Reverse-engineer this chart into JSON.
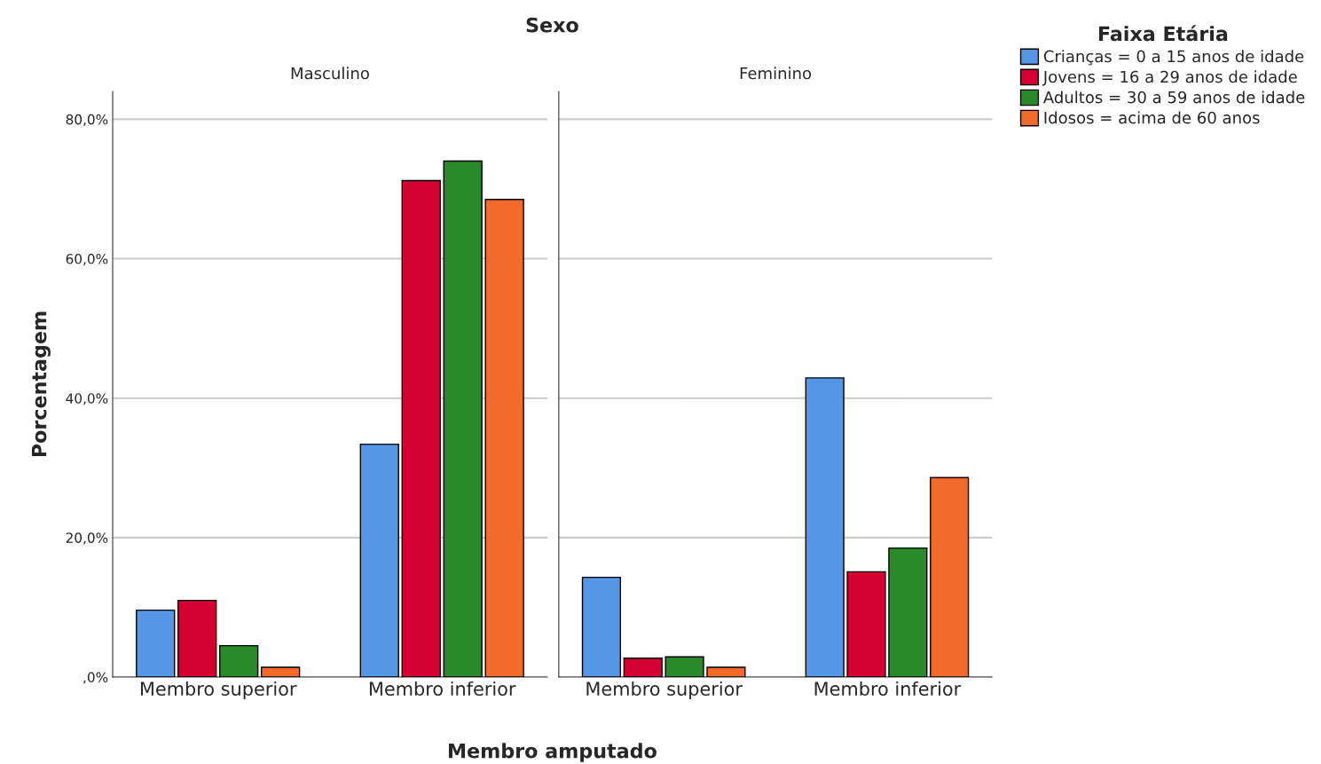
{
  "chart_data": [
    {
      "type": "bar",
      "title": "Sexo",
      "subtitle": "Masculino",
      "xlabel": "Membro amputado",
      "ylabel": "Porcentagem",
      "legend_title": "Faixa Etária",
      "legend": "top right",
      "categories": [
        "Membro superior",
        "Membro inferior"
      ],
      "series": [
        {
          "name": "Crianças = 0 a 15 anos de idade",
          "color": "#5596e6",
          "values": [
            9.6,
            33.4
          ]
        },
        {
          "name": "Jovens = 16 a 29 anos de idade",
          "color": "#d50032",
          "values": [
            11.0,
            71.2
          ]
        },
        {
          "name": "Adultos = 30 a 59 anos de idade",
          "color": "#2a8a2a",
          "values": [
            4.5,
            74.0
          ]
        },
        {
          "name": "Idosos = acima de 60 anos",
          "color": "#f26b2b",
          "values": [
            1.4,
            68.5
          ]
        }
      ],
      "ylim": [
        0,
        84
      ],
      "yticks": [
        {
          "value": 0,
          "label": ",0%"
        },
        {
          "value": 20,
          "label": "20,0%"
        },
        {
          "value": 40,
          "label": "40,0%"
        },
        {
          "value": 60,
          "label": "60,0%"
        },
        {
          "value": 80,
          "label": "80,0%"
        }
      ],
      "grid": "y"
    },
    {
      "type": "bar",
      "subtitle": "Feminino",
      "tick_labels": "x",
      "categories": [
        "Membro superior",
        "Membro inferior"
      ],
      "series": [
        {
          "color": "#5596e6",
          "values": [
            14.3,
            42.9
          ]
        },
        {
          "color": "#d50032",
          "values": [
            2.7,
            15.1
          ]
        },
        {
          "color": "#2a8a2a",
          "values": [
            2.9,
            18.5
          ]
        },
        {
          "color": "#f26b2b",
          "values": [
            1.4,
            28.6
          ]
        }
      ],
      "ylim": [
        0,
        84
      ],
      "yticks": [
        0,
        20,
        40,
        60,
        80
      ],
      "grid": "y"
    }
  ]
}
